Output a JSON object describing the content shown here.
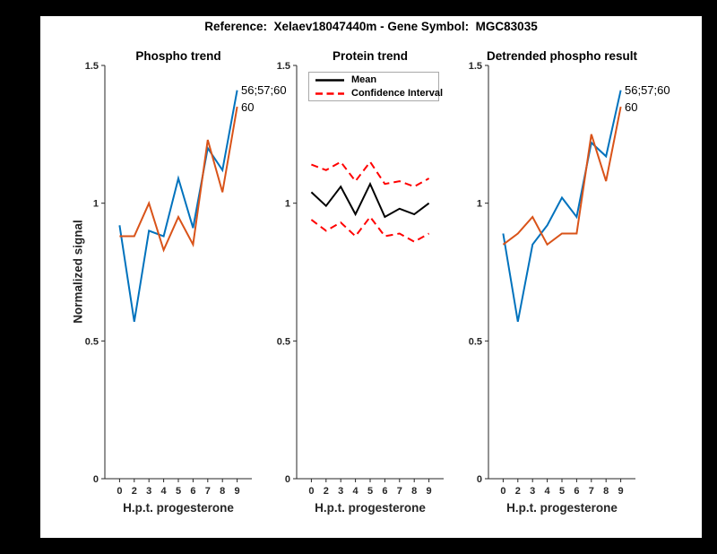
{
  "figure": {
    "title": "Reference:  Xelaev18047440m - Gene Symbol:  MGC83035",
    "shared_ylabel": "Normalized signal",
    "colors": {
      "phospho_blue": "#0072BD",
      "phospho_orange": "#D95319",
      "mean_black": "#000000",
      "ci_red": "#FF0000",
      "axis": "#262626",
      "background": "#FFFFFF",
      "frame": "#000000"
    }
  },
  "chart_data": [
    {
      "type": "line",
      "title": "Phospho trend",
      "xlabel": "H.p.t. progesterone",
      "ylabel": "Normalized signal",
      "categories": [
        "0",
        "2",
        "3",
        "4",
        "5",
        "6",
        "7",
        "8",
        "9"
      ],
      "ylim": [
        0,
        1.5
      ],
      "yticks": [
        0,
        0.5,
        1,
        1.5
      ],
      "ytick_labels": [
        "0",
        "0.5",
        "1",
        "1.5"
      ],
      "grid": false,
      "series": [
        {
          "name": "56;57;60",
          "color": "#0072BD",
          "style": "solid",
          "values": [
            0.92,
            0.57,
            0.9,
            0.88,
            1.09,
            0.91,
            1.2,
            1.12,
            1.41
          ]
        },
        {
          "name": "60",
          "color": "#D95319",
          "style": "solid",
          "values": [
            0.88,
            0.88,
            1.0,
            0.83,
            0.95,
            0.85,
            1.23,
            1.04,
            1.35
          ]
        }
      ],
      "annotations": [
        "56;57;60",
        "60"
      ]
    },
    {
      "type": "line",
      "title": "Protein trend",
      "xlabel": "H.p.t. progesterone",
      "ylabel": "",
      "categories": [
        "0",
        "2",
        "3",
        "4",
        "5",
        "6",
        "7",
        "8",
        "9"
      ],
      "ylim": [
        0,
        1.5
      ],
      "yticks": [
        0,
        0.5,
        1,
        1.5
      ],
      "ytick_labels": [
        "0",
        "0.5",
        "1",
        "1.5"
      ],
      "grid": false,
      "legend_entries": [
        "Mean",
        "Confidence Interval"
      ],
      "legend_position": "top-left",
      "series": [
        {
          "name": "Mean",
          "color": "#000000",
          "style": "solid",
          "values": [
            1.04,
            0.99,
            1.06,
            0.96,
            1.07,
            0.95,
            0.98,
            0.96,
            1.0
          ]
        },
        {
          "name": "Confidence Interval upper",
          "color": "#FF0000",
          "style": "dashed",
          "values": [
            1.14,
            1.12,
            1.15,
            1.08,
            1.15,
            1.07,
            1.08,
            1.06,
            1.09
          ]
        },
        {
          "name": "Confidence Interval lower",
          "color": "#FF0000",
          "style": "dashed",
          "values": [
            0.94,
            0.9,
            0.93,
            0.88,
            0.95,
            0.88,
            0.89,
            0.86,
            0.89
          ]
        }
      ]
    },
    {
      "type": "line",
      "title": "Detrended phospho result",
      "xlabel": "H.p.t. progesterone",
      "ylabel": "",
      "categories": [
        "0",
        "2",
        "3",
        "4",
        "5",
        "6",
        "7",
        "8",
        "9"
      ],
      "ylim": [
        0,
        1.5
      ],
      "yticks": [
        0,
        0.5,
        1,
        1.5
      ],
      "ytick_labels": [
        "0",
        "0.5",
        "1",
        "1.5"
      ],
      "grid": false,
      "series": [
        {
          "name": "56;57;60",
          "color": "#0072BD",
          "style": "solid",
          "values": [
            0.89,
            0.57,
            0.85,
            0.92,
            1.02,
            0.95,
            1.22,
            1.17,
            1.41
          ]
        },
        {
          "name": "60",
          "color": "#D95319",
          "style": "solid",
          "values": [
            0.85,
            0.89,
            0.95,
            0.85,
            0.89,
            0.89,
            1.25,
            1.08,
            1.35
          ]
        }
      ],
      "annotations": [
        "56;57;60",
        "60"
      ]
    }
  ]
}
